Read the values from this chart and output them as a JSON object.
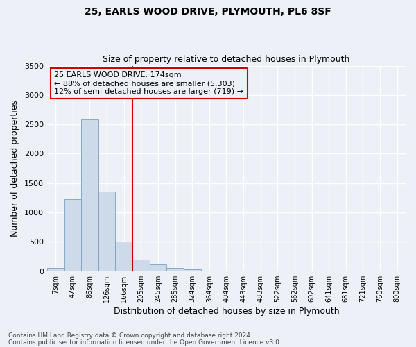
{
  "title1": "25, EARLS WOOD DRIVE, PLYMOUTH, PL6 8SF",
  "title2": "Size of property relative to detached houses in Plymouth",
  "xlabel": "Distribution of detached houses by size in Plymouth",
  "ylabel": "Number of detached properties",
  "categories": [
    "7sqm",
    "47sqm",
    "86sqm",
    "126sqm",
    "166sqm",
    "205sqm",
    "245sqm",
    "285sqm",
    "324sqm",
    "364sqm",
    "404sqm",
    "443sqm",
    "483sqm",
    "522sqm",
    "562sqm",
    "602sqm",
    "641sqm",
    "681sqm",
    "721sqm",
    "760sqm",
    "800sqm"
  ],
  "bar_values": [
    55,
    1230,
    2590,
    1350,
    500,
    200,
    110,
    55,
    30,
    5,
    0,
    0,
    0,
    0,
    0,
    0,
    0,
    0,
    0,
    0,
    0
  ],
  "bar_color": "#cddaea",
  "bar_edge_color": "#7aa0c0",
  "property_line_x": 4.5,
  "property_line_color": "#cc0000",
  "ylim": [
    0,
    3500
  ],
  "yticks": [
    0,
    500,
    1000,
    1500,
    2000,
    2500,
    3000,
    3500
  ],
  "annotation_title": "25 EARLS WOOD DRIVE: 174sqm",
  "annotation_line1": "← 88% of detached houses are smaller (5,303)",
  "annotation_line2": "12% of semi-detached houses are larger (719) →",
  "annotation_box_color": "#cc0000",
  "footer1": "Contains HM Land Registry data © Crown copyright and database right 2024.",
  "footer2": "Contains public sector information licensed under the Open Government Licence v3.0.",
  "bg_color": "#edf1f7",
  "grid_color": "#ffffff"
}
